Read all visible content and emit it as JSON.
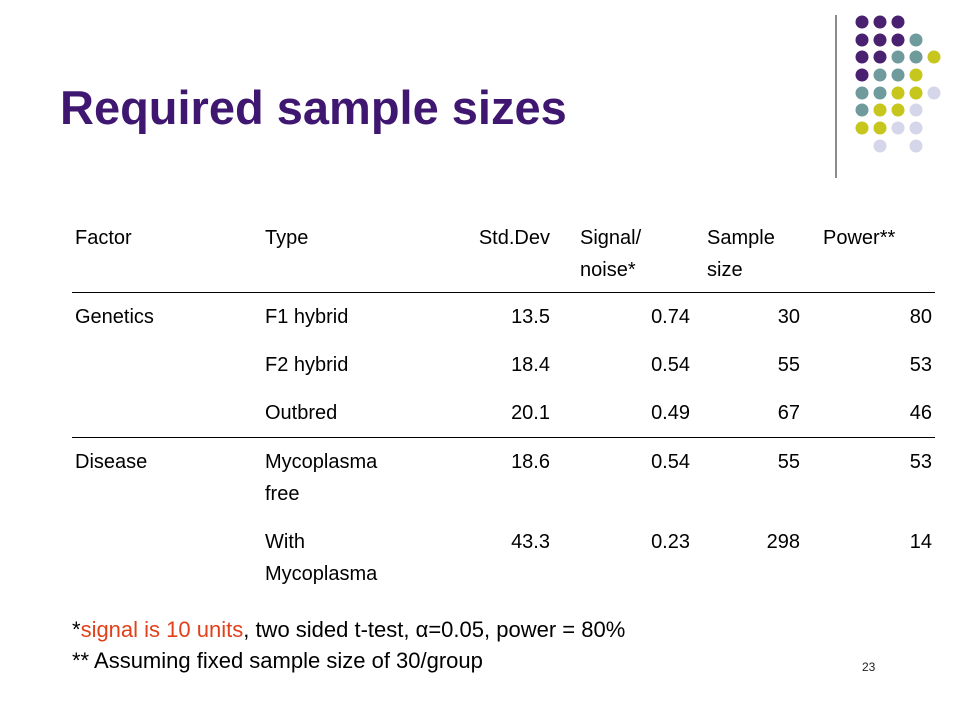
{
  "title": "Required sample sizes",
  "table": {
    "header": [
      "Factor",
      "Type",
      "Std.Dev",
      "Signal/ noise*",
      "Sample size",
      "Power**"
    ],
    "groups": [
      {
        "factor": "Genetics",
        "rows": [
          [
            "F1 hybrid",
            13.5,
            0.74,
            30,
            80
          ],
          [
            "F2 hybrid",
            18.4,
            0.54,
            55,
            53
          ],
          [
            "Outbred",
            20.1,
            0.49,
            67,
            46
          ]
        ]
      },
      {
        "factor": "Disease",
        "rows": [
          [
            "Mycoplasma free",
            18.6,
            0.54,
            55,
            53
          ],
          [
            "With Mycoplasma",
            43.3,
            0.23,
            298,
            14
          ]
        ]
      }
    ]
  },
  "footnotes": [
    [
      "*",
      "signal is 10 units",
      ", two sided t-test, α=0.05, power = 80%"
    ],
    "** Assuming fixed sample size of 30/group"
  ],
  "page_number": "23"
}
